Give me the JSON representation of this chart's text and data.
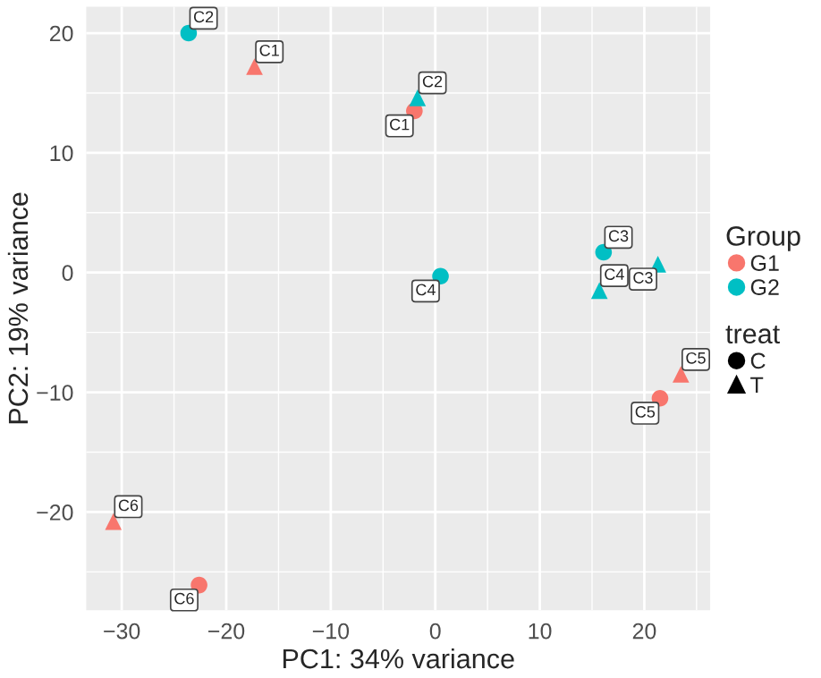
{
  "chart_data": {
    "type": "scatter",
    "xlabel": "PC1: 34% variance",
    "ylabel": "PC2: 19% variance",
    "legend_title": [
      "Group",
      "treat"
    ],
    "legend": "right",
    "grid": true,
    "xlim": [
      -33.4,
      26.3
    ],
    "ylim": [
      -28.2,
      22.2
    ],
    "xticks": [
      -30,
      -20,
      -10,
      0,
      10,
      20
    ],
    "yticks": [
      -20,
      -10,
      0,
      10,
      20
    ],
    "series": [
      {
        "name": "G1",
        "color": "#f8766d",
        "marker": "circle",
        "x": [
          -2.0,
          21.5,
          -22.6
        ],
        "values": [
          13.5,
          -10.5,
          -26.1
        ]
      },
      {
        "color": "#f8766d",
        "marker": "triangle",
        "x": [
          -17.3,
          23.5,
          -30.8
        ],
        "values": [
          17.2,
          -8.5,
          -20.8
        ]
      },
      {
        "name": "G2",
        "color": "#00bfc4",
        "marker": "circle",
        "x": [
          -23.6,
          0.5,
          16.1
        ],
        "values": [
          20.0,
          -0.3,
          1.7
        ]
      },
      {
        "color": "#00bfc4",
        "marker": "triangle",
        "x": [
          -1.7,
          15.7,
          21.3
        ],
        "values": [
          14.6,
          -1.5,
          0.7
        ]
      },
      {
        "name": "C",
        "color": "#000000",
        "marker": "circle"
      },
      {
        "name": "T",
        "color": "#000000",
        "marker": "triangle"
      }
    ],
    "annotations": [
      {
        "text": "C2",
        "x": -23.6,
        "y": 20.0
      },
      {
        "text": "C1",
        "x": -17.3,
        "y": 17.2
      },
      {
        "text": "C1",
        "x": -2.0,
        "y": 13.5
      },
      {
        "text": "C2",
        "x": -1.7,
        "y": 14.6
      },
      {
        "text": "C4",
        "x": 0.5,
        "y": -0.3
      },
      {
        "text": "C3",
        "x": 16.1,
        "y": 1.7
      },
      {
        "text": "C4",
        "x": 15.7,
        "y": -1.5
      },
      {
        "text": "C3",
        "x": 21.3,
        "y": 0.7
      },
      {
        "text": "C5",
        "x": 21.5,
        "y": -10.5
      },
      {
        "text": "C5",
        "x": 23.5,
        "y": -8.5
      },
      {
        "text": "C6",
        "x": -30.8,
        "y": -20.8
      },
      {
        "text": "C6",
        "x": -22.6,
        "y": -26.1
      }
    ]
  }
}
